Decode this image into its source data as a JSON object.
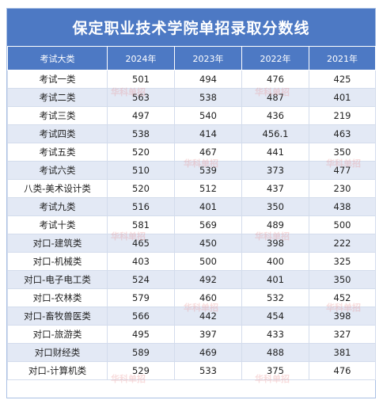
{
  "title": "保定职业技术学院单招录取分数线",
  "headers": [
    "考试大类",
    "2024年",
    "2023年",
    "2022年",
    "2021年"
  ],
  "rows": [
    [
      "考试一类",
      "501",
      "494",
      "476",
      "425"
    ],
    [
      "考试二类",
      "563",
      "538",
      "487",
      "401"
    ],
    [
      "考试三类",
      "497",
      "540",
      "436",
      "219"
    ],
    [
      "考试四类",
      "538",
      "414",
      "456.1",
      "463"
    ],
    [
      "考试五类",
      "520",
      "467",
      "441",
      "350"
    ],
    [
      "考试六类",
      "510",
      "539",
      "373",
      "477"
    ],
    [
      "八类-美术设计类",
      "520",
      "512",
      "437",
      "230"
    ],
    [
      "考试九类",
      "516",
      "401",
      "350",
      "438"
    ],
    [
      "考试十类",
      "581",
      "569",
      "489",
      "500"
    ],
    [
      "对口-建筑类",
      "465",
      "450",
      "398",
      "222"
    ],
    [
      "对口-机械类",
      "403",
      "500",
      "400",
      "325"
    ],
    [
      "对口-电子电工类",
      "524",
      "492",
      "401",
      "350"
    ],
    [
      "对口-农林类",
      "579",
      "460",
      "532",
      "452"
    ],
    [
      "对口-畜牧兽医类",
      "566",
      "442",
      "454",
      "398"
    ],
    [
      "对口-旅游类",
      "495",
      "397",
      "433",
      "327"
    ],
    [
      "对口财经类",
      "589",
      "469",
      "488",
      "381"
    ],
    [
      "对口-计算机类",
      "529",
      "533",
      "375",
      "476"
    ]
  ],
  "watermark": "华科单招",
  "colors": {
    "header_bg": "#4d79c4",
    "stripe": "#e3e9f5"
  }
}
